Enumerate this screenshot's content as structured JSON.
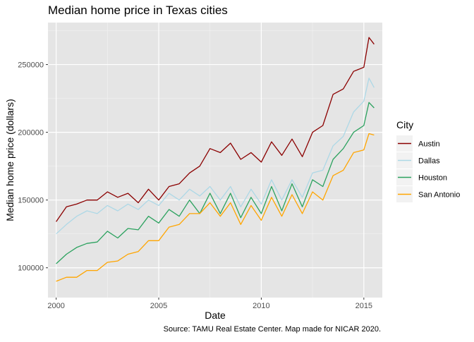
{
  "chart_data": {
    "type": "line",
    "title": "Median home price in Texas cities",
    "xlabel": "Date",
    "ylabel": "Median home price (dollars)",
    "caption": "Source: TAMU Real Estate Center. Map made for NICAR 2020.",
    "xlim": [
      1999.6,
      2015.9
    ],
    "ylim": [
      78000,
      281000
    ],
    "x_ticks": [
      2000,
      2005,
      2010,
      2015
    ],
    "x_tick_labels": [
      "2000",
      "2005",
      "2010",
      "2015"
    ],
    "y_ticks": [
      100000,
      150000,
      200000,
      250000
    ],
    "y_tick_labels": [
      "100000",
      "150000",
      "200000",
      "250000"
    ],
    "grid": true,
    "legend": {
      "title": "City",
      "position": "right"
    },
    "x": [
      2000.0,
      2000.5,
      2001.0,
      2001.5,
      2002.0,
      2002.5,
      2003.0,
      2003.5,
      2004.0,
      2004.5,
      2005.0,
      2005.5,
      2006.0,
      2006.5,
      2007.0,
      2007.5,
      2008.0,
      2008.5,
      2009.0,
      2009.5,
      2010.0,
      2010.5,
      2011.0,
      2011.5,
      2012.0,
      2012.5,
      2013.0,
      2013.5,
      2014.0,
      2014.5,
      2015.0,
      2015.25,
      2015.5
    ],
    "series": [
      {
        "name": "Austin",
        "color": "#8B0000",
        "values": [
          134000,
          145000,
          147000,
          150000,
          150000,
          156000,
          152000,
          155000,
          148000,
          158000,
          150000,
          160000,
          162000,
          170000,
          175000,
          188000,
          185000,
          192000,
          180000,
          185000,
          178000,
          193000,
          183000,
          195000,
          182000,
          200000,
          205000,
          228000,
          232000,
          245000,
          248000,
          270000,
          265000
        ]
      },
      {
        "name": "Dallas",
        "color": "#ADD8E6",
        "values": [
          125000,
          132000,
          138000,
          142000,
          140000,
          146000,
          142000,
          147000,
          143000,
          150000,
          146000,
          155000,
          150000,
          158000,
          153000,
          160000,
          150000,
          160000,
          145000,
          158000,
          147000,
          165000,
          150000,
          165000,
          152000,
          170000,
          172000,
          190000,
          197000,
          215000,
          223000,
          240000,
          233000
        ]
      },
      {
        "name": "Houston",
        "color": "#2CA25F",
        "values": [
          103000,
          110000,
          115000,
          118000,
          119000,
          127000,
          122000,
          129000,
          128000,
          138000,
          133000,
          143000,
          138000,
          150000,
          140000,
          155000,
          140000,
          155000,
          137000,
          152000,
          140000,
          160000,
          142000,
          162000,
          145000,
          165000,
          160000,
          180000,
          188000,
          200000,
          205000,
          222000,
          218000
        ]
      },
      {
        "name": "San Antonio",
        "color": "#FFA500",
        "values": [
          90000,
          93000,
          93000,
          98000,
          98000,
          104000,
          105000,
          110000,
          112000,
          120000,
          120000,
          130000,
          132000,
          140000,
          140000,
          148000,
          138000,
          148000,
          132000,
          146000,
          135000,
          152000,
          138000,
          154000,
          140000,
          156000,
          150000,
          168000,
          172000,
          185000,
          187000,
          199000,
          198000
        ]
      }
    ]
  }
}
